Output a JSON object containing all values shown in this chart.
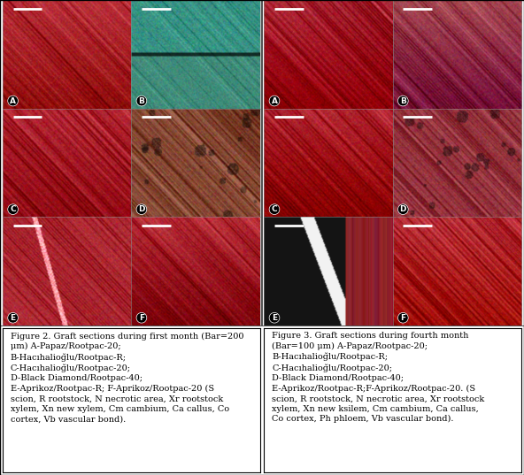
{
  "fig_width": 5.92,
  "fig_height": 5.37,
  "dpi": 100,
  "bg_color": "#ffffff",
  "left_caption_lines": [
    "Figure 2. Graft sections during first month (Bar=200",
    "μm) A-Papaz/Rootpac-20;",
    "B-Hacıhalioğlu/Rootpac-R;",
    "C-Hacıhalioğlu/Rootpac-20;",
    "D-Black Diamond/Rootpac-40;",
    "E-Aprikoz/Rootpac-R; F-Aprikoz/Rootpac-20 (S",
    "scion, R rootstock, N necrotic area, Xr rootstock",
    "xylem, Xn new xylem, Cm cambium, Ca callus, Co",
    "cortex, Vb vascular bond)."
  ],
  "right_caption_lines": [
    "Figure 3. Graft sections during fourth month",
    "(Bar=100 μm) A-Papaz/Rootpac-20;",
    "B-Hacıhalioğlu/Rootpac-R;",
    "C-Hacıhalioğlu/Rootpac-20;",
    "D-Black Diamond/Rootpac-40;",
    "E-Aprikoz/Rootpac-R;F-Aprikoz/Rootpac-20. (S",
    "scion, R rootstock, N necrotic area, Xr rootstock",
    "xylem, Xn new ksilem, Cm cambium, Ca callus,",
    "Co cortex, Ph phloem, Vb vascular bond)."
  ],
  "caption_fontsize": 7.0,
  "panels": {
    "left": [
      {
        "label": "A",
        "base_color": [
          0.72,
          0.18,
          0.22
        ],
        "accent": [
          0.55,
          0.12,
          0.15
        ],
        "style": "xylem_diagonal"
      },
      {
        "label": "B",
        "base_color": [
          0.25,
          0.55,
          0.48
        ],
        "accent": [
          0.72,
          0.2,
          0.25
        ],
        "style": "teal_xylem"
      },
      {
        "label": "C",
        "base_color": [
          0.7,
          0.15,
          0.2
        ],
        "accent": [
          0.85,
          0.3,
          0.35
        ],
        "style": "xylem_dark"
      },
      {
        "label": "D",
        "base_color": [
          0.52,
          0.28,
          0.2
        ],
        "accent": [
          0.75,
          0.22,
          0.18
        ],
        "style": "brown_mix"
      },
      {
        "label": "E",
        "base_color": [
          0.68,
          0.16,
          0.2
        ],
        "accent": [
          0.85,
          0.35,
          0.4
        ],
        "style": "xylem_white"
      },
      {
        "label": "F",
        "base_color": [
          0.72,
          0.18,
          0.22
        ],
        "accent": [
          0.55,
          0.12,
          0.15
        ],
        "style": "xylem_diagonal"
      }
    ],
    "right": [
      {
        "label": "A",
        "base_color": [
          0.68,
          0.16,
          0.22
        ],
        "accent": [
          0.45,
          0.1,
          0.14
        ],
        "style": "xylem_diagonal"
      },
      {
        "label": "B",
        "base_color": [
          0.65,
          0.28,
          0.32
        ],
        "accent": [
          0.8,
          0.2,
          0.25
        ],
        "style": "xylem_dark"
      },
      {
        "label": "C",
        "base_color": [
          0.7,
          0.15,
          0.2
        ],
        "accent": [
          0.85,
          0.3,
          0.35
        ],
        "style": "xylem_diagonal"
      },
      {
        "label": "D",
        "base_color": [
          0.6,
          0.22,
          0.26
        ],
        "accent": [
          0.75,
          0.18,
          0.22
        ],
        "style": "brown_mix"
      },
      {
        "label": "E",
        "base_color": [
          0.15,
          0.1,
          0.12
        ],
        "accent": [
          0.5,
          0.15,
          0.18
        ],
        "style": "dark_graft"
      },
      {
        "label": "F",
        "base_color": [
          0.72,
          0.18,
          0.22
        ],
        "accent": [
          0.55,
          0.12,
          0.15
        ],
        "style": "xylem_diagonal"
      }
    ]
  }
}
